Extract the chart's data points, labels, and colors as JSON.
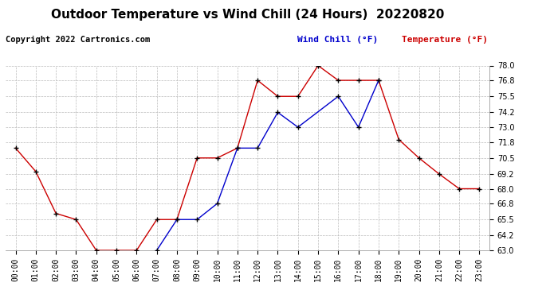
{
  "title": "Outdoor Temperature vs Wind Chill (24 Hours)  20220820",
  "copyright": "Copyright 2022 Cartronics.com",
  "legend_wind_chill": "Wind Chill (°F)",
  "legend_temp": "Temperature (°F)",
  "x_labels": [
    "00:00",
    "01:00",
    "02:00",
    "03:00",
    "04:00",
    "05:00",
    "06:00",
    "07:00",
    "08:00",
    "09:00",
    "10:00",
    "11:00",
    "12:00",
    "13:00",
    "14:00",
    "15:00",
    "16:00",
    "17:00",
    "18:00",
    "19:00",
    "20:00",
    "21:00",
    "22:00",
    "23:00"
  ],
  "temperature": [
    71.3,
    69.4,
    66.0,
    65.5,
    63.0,
    63.0,
    63.0,
    65.5,
    65.5,
    70.5,
    70.5,
    71.3,
    76.8,
    75.5,
    75.5,
    78.0,
    76.8,
    76.8,
    76.8,
    72.0,
    70.5,
    69.2,
    68.0,
    68.0
  ],
  "wind_chill": [
    null,
    null,
    null,
    null,
    null,
    null,
    null,
    63.0,
    65.5,
    65.5,
    66.8,
    71.3,
    71.3,
    74.2,
    73.0,
    null,
    75.5,
    73.0,
    76.8,
    null,
    null,
    null,
    null,
    null
  ],
  "ylim": [
    63.0,
    78.0
  ],
  "yticks": [
    63.0,
    64.2,
    65.5,
    66.8,
    68.0,
    69.2,
    70.5,
    71.8,
    73.0,
    74.2,
    75.5,
    76.8,
    78.0
  ],
  "temp_color": "#cc0000",
  "wind_chill_color": "#0000cc",
  "grid_color": "#bbbbbb",
  "bg_color": "#ffffff",
  "title_fontsize": 11,
  "copyright_fontsize": 7.5,
  "tick_fontsize": 7,
  "legend_fontsize": 8
}
